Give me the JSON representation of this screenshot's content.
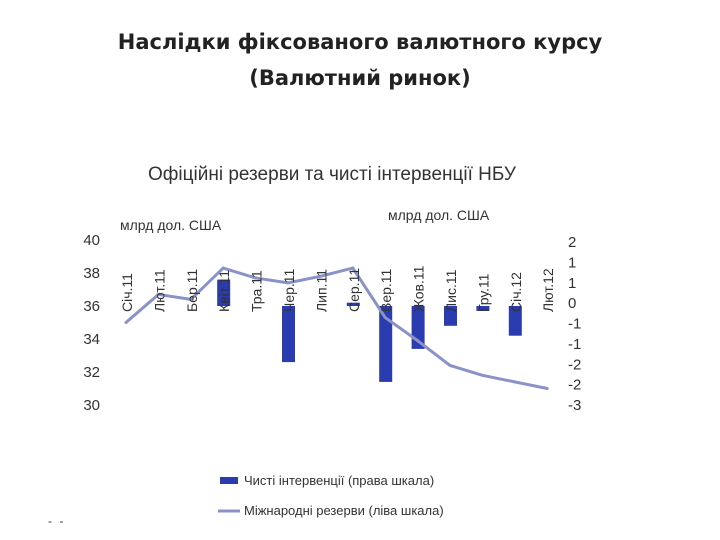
{
  "slide": {
    "title_line1": "Наслідки фіксованого валютного курсу",
    "title_line2": "(Валютний ринок)"
  },
  "chart_data": {
    "type": "bar+line",
    "title": "Офіційні резерви та чисті інтервенції НБУ",
    "left_axis": {
      "unit": "млрд дол. США",
      "ylim": [
        30,
        40
      ],
      "ticks": [
        "30",
        "32",
        "34",
        "36",
        "38",
        "40"
      ]
    },
    "right_axis": {
      "unit": "млрд дол. США",
      "ylim": [
        -3,
        2
      ],
      "ticks": [
        "2",
        "1",
        "1",
        "0",
        "-1",
        "-1",
        "-2",
        "-2",
        "-3"
      ]
    },
    "categories": [
      "Січ.11",
      "Лют.11",
      "Бер.11",
      "Квіт.11",
      "Тра.11",
      "Чер.11",
      "Лип.11",
      "Сер.11",
      "Вер.11",
      "Жов.11",
      "Лис.11",
      "Гру.11",
      "Січ.12",
      "Лют.12"
    ],
    "series": [
      {
        "name": "Чисті інтервенції (права шкала)",
        "kind": "bar",
        "axis": "right",
        "color": "#2b3bb0",
        "values": [
          0,
          0,
          0,
          0.8,
          0,
          -1.7,
          0,
          0.1,
          -2.3,
          -1.3,
          -0.6,
          -0.15,
          -0.9,
          0
        ]
      },
      {
        "name": "Міжнародні резерви (ліва шкала)",
        "kind": "line",
        "axis": "left",
        "color": "#8a92c8",
        "values": [
          35.0,
          36.7,
          36.4,
          38.3,
          37.7,
          37.4,
          37.8,
          38.3,
          35.3,
          33.9,
          32.4,
          31.8,
          31.4,
          31.0
        ]
      }
    ],
    "legend_position": "bottom"
  },
  "colors": {
    "bars": "#2b3bb0",
    "line": "#8a92c8",
    "text": "#333333"
  },
  "footer": {
    "mark": "- -"
  }
}
